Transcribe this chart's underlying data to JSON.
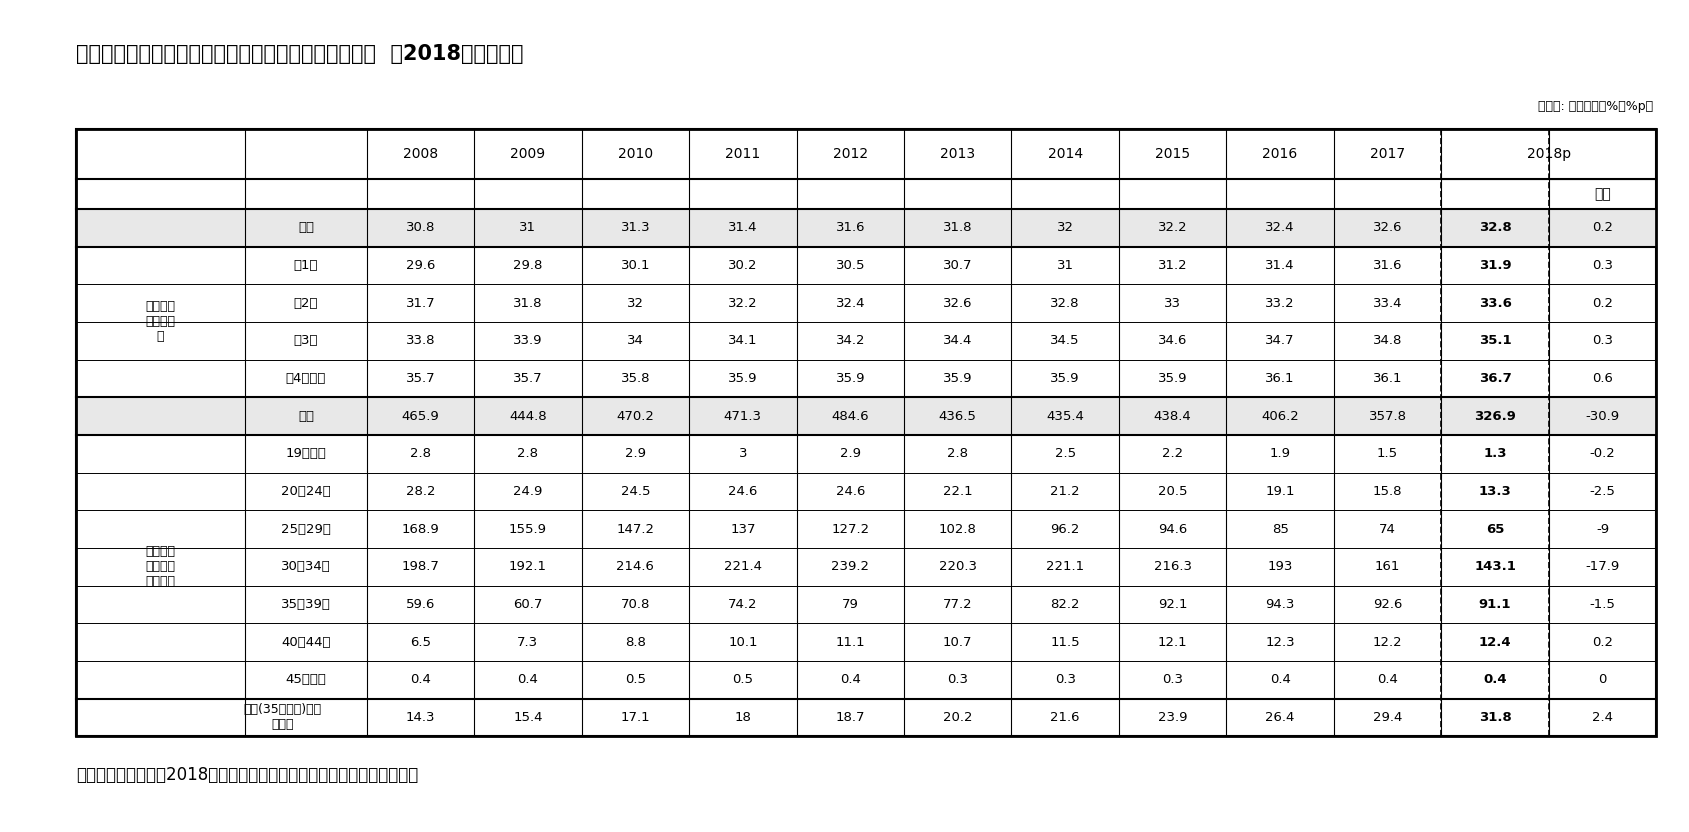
{
  "title": "図表４母親の平均出産年齢および年齢階級別出生児数（2018年暫定値）",
  "title_display": "図表４母親の平均出産年齢および年齢階級別出生児数  （2018年暫定値）",
  "unit_label": "（単位: 歳、千人、%、%p）",
  "source": "資料）韓国統計庁「2018年人口統計調査出生・死亡統計（暫定）結果」",
  "year_headers": [
    "2008",
    "2009",
    "2010",
    "2011",
    "2012",
    "2013",
    "2014",
    "2015",
    "2016",
    "2017"
  ],
  "rows": [
    {
      "group": "",
      "label": "小計",
      "values": [
        "30.8",
        "31",
        "31.3",
        "31.4",
        "31.6",
        "31.8",
        "32",
        "32.2",
        "32.4",
        "32.6",
        "32.8",
        "0.2"
      ],
      "is_subtotal": true,
      "group_row": false
    },
    {
      "group": "母親の平\n均出産年\n齢",
      "label": "第1子",
      "values": [
        "29.6",
        "29.8",
        "30.1",
        "30.2",
        "30.5",
        "30.7",
        "31",
        "31.2",
        "31.4",
        "31.6",
        "31.9",
        "0.3"
      ],
      "is_subtotal": false,
      "group_row": true
    },
    {
      "group": "",
      "label": "第2子",
      "values": [
        "31.7",
        "31.8",
        "32",
        "32.2",
        "32.4",
        "32.6",
        "32.8",
        "33",
        "33.2",
        "33.4",
        "33.6",
        "0.2"
      ],
      "is_subtotal": false,
      "group_row": false
    },
    {
      "group": "",
      "label": "第3子",
      "values": [
        "33.8",
        "33.9",
        "34",
        "34.1",
        "34.2",
        "34.4",
        "34.5",
        "34.6",
        "34.7",
        "34.8",
        "35.1",
        "0.3"
      ],
      "is_subtotal": false,
      "group_row": false
    },
    {
      "group": "",
      "label": "第4子以上",
      "values": [
        "35.7",
        "35.7",
        "35.8",
        "35.9",
        "35.9",
        "35.9",
        "35.9",
        "35.9",
        "36.1",
        "36.1",
        "36.7",
        "0.6"
      ],
      "is_subtotal": false,
      "group_row": false
    },
    {
      "group": "",
      "label": "小計",
      "values": [
        "465.9",
        "444.8",
        "470.2",
        "471.3",
        "484.6",
        "436.5",
        "435.4",
        "438.4",
        "406.2",
        "357.8",
        "326.9",
        "-30.9"
      ],
      "is_subtotal": true,
      "group_row": false
    },
    {
      "group": "",
      "label": "19歳以下",
      "values": [
        "2.8",
        "2.8",
        "2.9",
        "3",
        "2.9",
        "2.8",
        "2.5",
        "2.2",
        "1.9",
        "1.5",
        "1.3",
        "-0.2"
      ],
      "is_subtotal": false,
      "group_row": false
    },
    {
      "group": "",
      "label": "20－24歳",
      "values": [
        "28.2",
        "24.9",
        "24.5",
        "24.6",
        "24.6",
        "22.1",
        "21.2",
        "20.5",
        "19.1",
        "15.8",
        "13.3",
        "-2.5"
      ],
      "is_subtotal": false,
      "group_row": false
    },
    {
      "group": "母親の年\n齢階級別\n出生児数",
      "label": "25－29歳",
      "values": [
        "168.9",
        "155.9",
        "147.2",
        "137",
        "127.2",
        "102.8",
        "96.2",
        "94.6",
        "85",
        "74",
        "65",
        "-9"
      ],
      "is_subtotal": false,
      "group_row": true
    },
    {
      "group": "",
      "label": "30－34歳",
      "values": [
        "198.7",
        "192.1",
        "214.6",
        "221.4",
        "239.2",
        "220.3",
        "221.1",
        "216.3",
        "193",
        "161",
        "143.1",
        "-17.9"
      ],
      "is_subtotal": false,
      "group_row": false
    },
    {
      "group": "",
      "label": "35－39歳",
      "values": [
        "59.6",
        "60.7",
        "70.8",
        "74.2",
        "79",
        "77.2",
        "82.2",
        "92.1",
        "94.3",
        "92.6",
        "91.1",
        "-1.5"
      ],
      "is_subtotal": false,
      "group_row": false
    },
    {
      "group": "",
      "label": "40－44歳",
      "values": [
        "6.5",
        "7.3",
        "8.8",
        "10.1",
        "11.1",
        "10.7",
        "11.5",
        "12.1",
        "12.3",
        "12.2",
        "12.4",
        "0.2"
      ],
      "is_subtotal": false,
      "group_row": false
    },
    {
      "group": "",
      "label": "45歳以上",
      "values": [
        "0.4",
        "0.4",
        "0.5",
        "0.5",
        "0.4",
        "0.3",
        "0.3",
        "0.3",
        "0.4",
        "0.4",
        "0.4",
        "0"
      ],
      "is_subtotal": false,
      "group_row": false
    },
    {
      "group": "高齢(35歳以上)産婦\nの割合",
      "label": "",
      "values": [
        "14.3",
        "15.4",
        "17.1",
        "18",
        "18.7",
        "20.2",
        "21.6",
        "23.9",
        "26.4",
        "29.4",
        "31.8",
        "2.4"
      ],
      "is_subtotal": false,
      "group_row": false
    }
  ],
  "group_spans": [
    {
      "text": "母親の平\n均出産年\n齢",
      "start": 1,
      "end": 4
    },
    {
      "text": "母親の年\n齢階級別\n出生児数",
      "start": 6,
      "end": 12
    }
  ],
  "thick_after": [
    0,
    4,
    5,
    12
  ],
  "subtotal_bg": "#e8e8e8",
  "bg_color": "#ffffff"
}
